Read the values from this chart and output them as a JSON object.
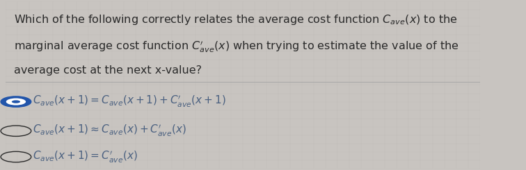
{
  "background_color": "#c8c4c0",
  "grid_color": "#b8b4b0",
  "text_color": "#2a2a2a",
  "formula_color": "#4a6080",
  "separator_color": "#aaaaaa",
  "selected_color": "#2255aa",
  "question_lines": [
    "Which of the following correctly relates the average cost function $C_{ave}(x)$ to the",
    "marginal average cost function $C_{ave}'(x)$ when trying to estimate the value of the",
    "average cost at the next x-value?"
  ],
  "options": [
    {
      "label": "$C_{ave}(x+1) = C_{ave}(x+1) + C_{ave}'(x+1)$",
      "selected": true
    },
    {
      "label": "$C_{ave}(x+1) \\approx C_{ave}(x) + C_{ave}'(x)$",
      "selected": false
    },
    {
      "label": "$C_{ave}(x+1) = C_{ave}'(x)$",
      "selected": false
    }
  ],
  "question_fontsize": 11.5,
  "option_fontsize": 11,
  "figsize": [
    7.56,
    2.45
  ],
  "dpi": 100
}
